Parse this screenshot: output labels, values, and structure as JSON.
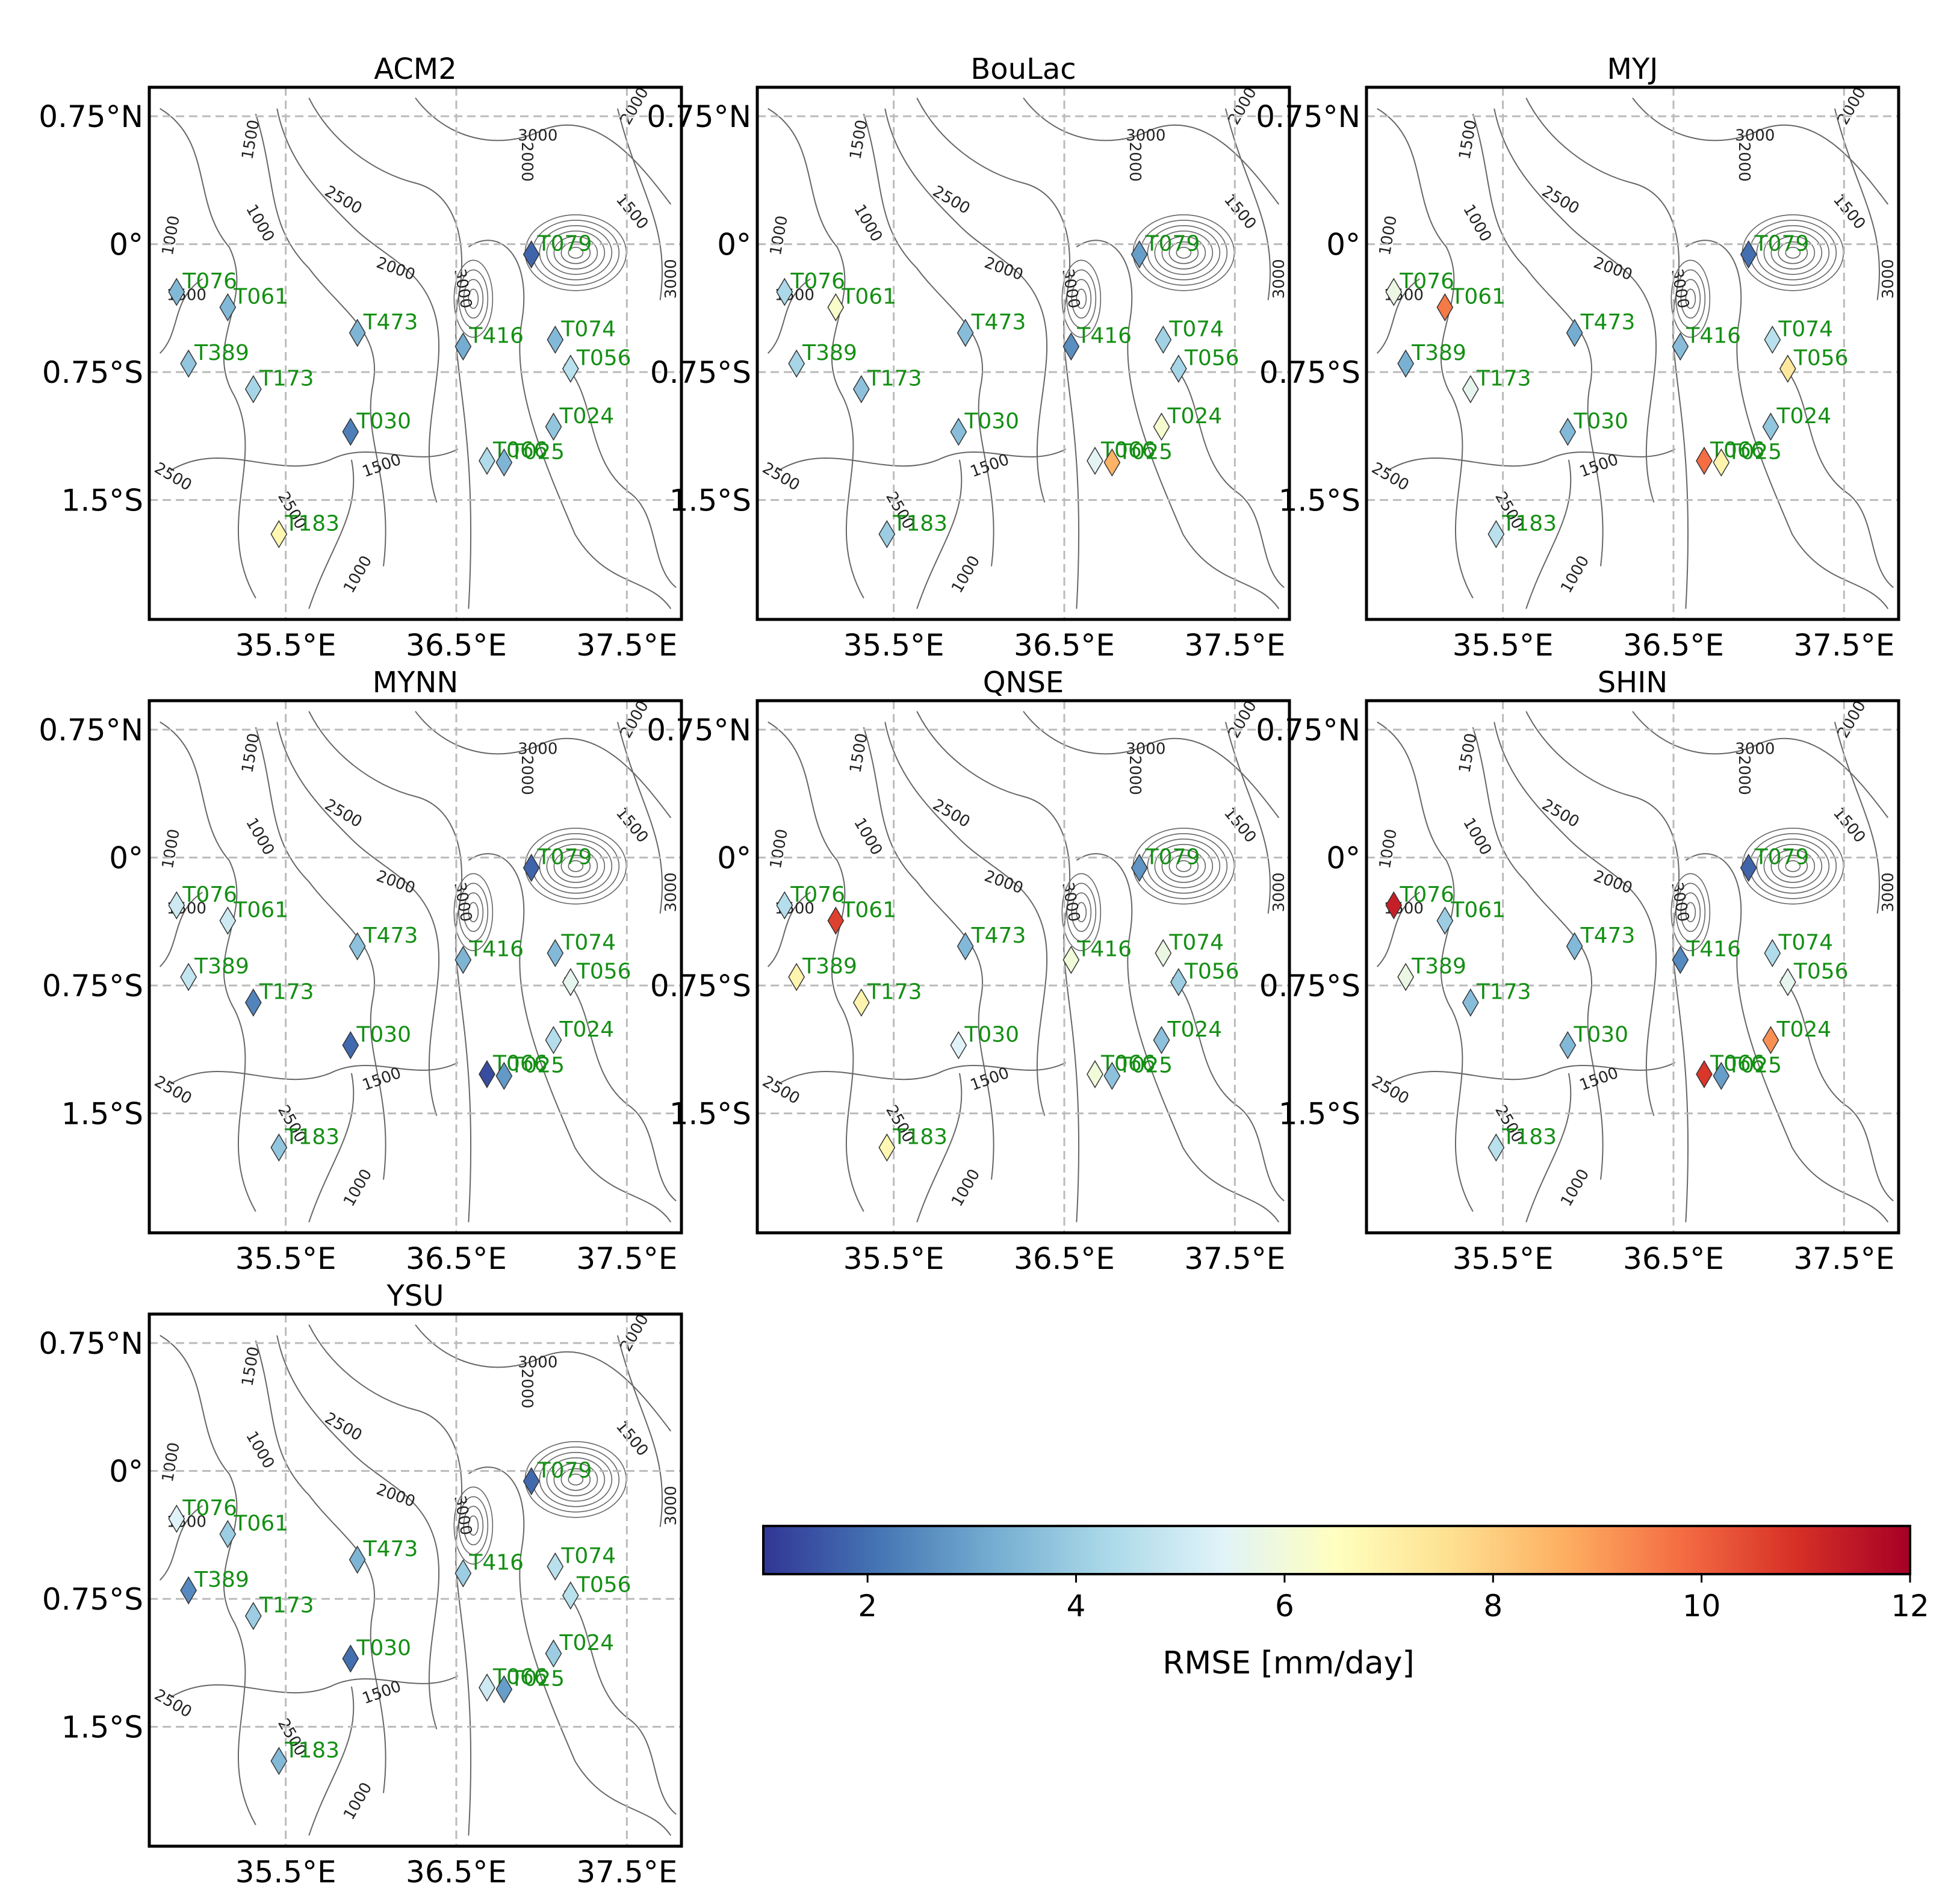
{
  "chart_data": {
    "type": "scatter",
    "panels": [
      "ACM2",
      "BouLac",
      "MYJ",
      "MYNN",
      "QNSE",
      "SHIN",
      "YSU"
    ],
    "x_ticks": [
      {
        "value": 35.5,
        "label": "35.5°E"
      },
      {
        "value": 36.5,
        "label": "36.5°E"
      },
      {
        "value": 37.5,
        "label": "37.5°E"
      }
    ],
    "y_ticks": [
      {
        "value": 0.75,
        "label": "0.75°N"
      },
      {
        "value": 0,
        "label": "0°"
      },
      {
        "value": -0.75,
        "label": "0.75°S"
      },
      {
        "value": -1.5,
        "label": "1.5°S"
      }
    ],
    "xlim": [
      34.7,
      37.82
    ],
    "ylim": [
      -2.2,
      0.92
    ],
    "grid": true,
    "stations": [
      {
        "id": "T079",
        "lon": 36.94,
        "lat": -0.06
      },
      {
        "id": "T076",
        "lon": 34.86,
        "lat": -0.28
      },
      {
        "id": "T061",
        "lon": 35.16,
        "lat": -0.37
      },
      {
        "id": "T473",
        "lon": 35.92,
        "lat": -0.52
      },
      {
        "id": "T416",
        "lon": 36.54,
        "lat": -0.6
      },
      {
        "id": "T074",
        "lon": 37.08,
        "lat": -0.56
      },
      {
        "id": "T389",
        "lon": 34.93,
        "lat": -0.7
      },
      {
        "id": "T056",
        "lon": 37.17,
        "lat": -0.73
      },
      {
        "id": "T173",
        "lon": 35.31,
        "lat": -0.85
      },
      {
        "id": "T024",
        "lon": 37.07,
        "lat": -1.07
      },
      {
        "id": "T030",
        "lon": 35.88,
        "lat": -1.1
      },
      {
        "id": "T066",
        "lon": 36.68,
        "lat": -1.27
      },
      {
        "id": "T025",
        "lon": 36.78,
        "lat": -1.28
      },
      {
        "id": "T183",
        "lon": 35.46,
        "lat": -1.7
      }
    ],
    "series": [
      {
        "name": "ACM2",
        "rmse": [
          1.8,
          3.5,
          3.5,
          3.4,
          3.2,
          3.5,
          3.8,
          4.6,
          4.2,
          3.8,
          2.3,
          4.4,
          3.4,
          6.8
        ]
      },
      {
        "name": "BouLac",
        "rmse": [
          2.9,
          4.3,
          6.3,
          3.6,
          2.6,
          4.1,
          4.2,
          4.2,
          3.7,
          6.2,
          3.6,
          5.5,
          8.6,
          4.0
        ]
      },
      {
        "name": "MYJ",
        "rmse": [
          2.0,
          5.8,
          9.6,
          3.2,
          3.6,
          4.6,
          3.3,
          7.3,
          5.6,
          3.8,
          3.5,
          9.8,
          6.9,
          4.6
        ]
      },
      {
        "name": "MYNN",
        "rmse": [
          1.8,
          5.0,
          5.0,
          3.7,
          3.4,
          3.5,
          4.8,
          5.6,
          2.4,
          4.5,
          1.9,
          1.4,
          2.8,
          3.8
        ]
      },
      {
        "name": "QNSE",
        "rmse": [
          2.7,
          4.5,
          10.6,
          3.5,
          6.0,
          5.8,
          6.9,
          4.0,
          6.9,
          3.7,
          5.4,
          6.0,
          3.7,
          6.8
        ]
      },
      {
        "name": "SHIN",
        "rmse": [
          1.8,
          11.3,
          4.0,
          3.5,
          2.5,
          4.4,
          5.8,
          5.6,
          3.6,
          9.2,
          3.5,
          10.8,
          2.9,
          4.6
        ]
      },
      {
        "name": "YSU",
        "rmse": [
          1.9,
          5.4,
          4.0,
          3.4,
          4.0,
          4.6,
          2.5,
          4.6,
          4.0,
          4.0,
          2.0,
          5.0,
          2.9,
          3.5
        ]
      }
    ],
    "contour_labels": [
      "1500",
      "2500",
      "1000",
      "2000",
      "3000"
    ],
    "colorbar": {
      "label": "RMSE [mm/day]",
      "min": 1,
      "max": 12,
      "ticks": [
        2,
        4,
        6,
        8,
        10,
        12
      ],
      "colormap": "RdYlBu_r",
      "colors": [
        "#313695",
        "#4575b4",
        "#74add1",
        "#abd9e9",
        "#e0f3f8",
        "#ffffbf",
        "#fee090",
        "#fdae61",
        "#f46d43",
        "#d73027",
        "#a50026"
      ]
    },
    "label_color": "#148f14",
    "grid_color": "#bbbbbb",
    "contour_color": "#666666"
  }
}
